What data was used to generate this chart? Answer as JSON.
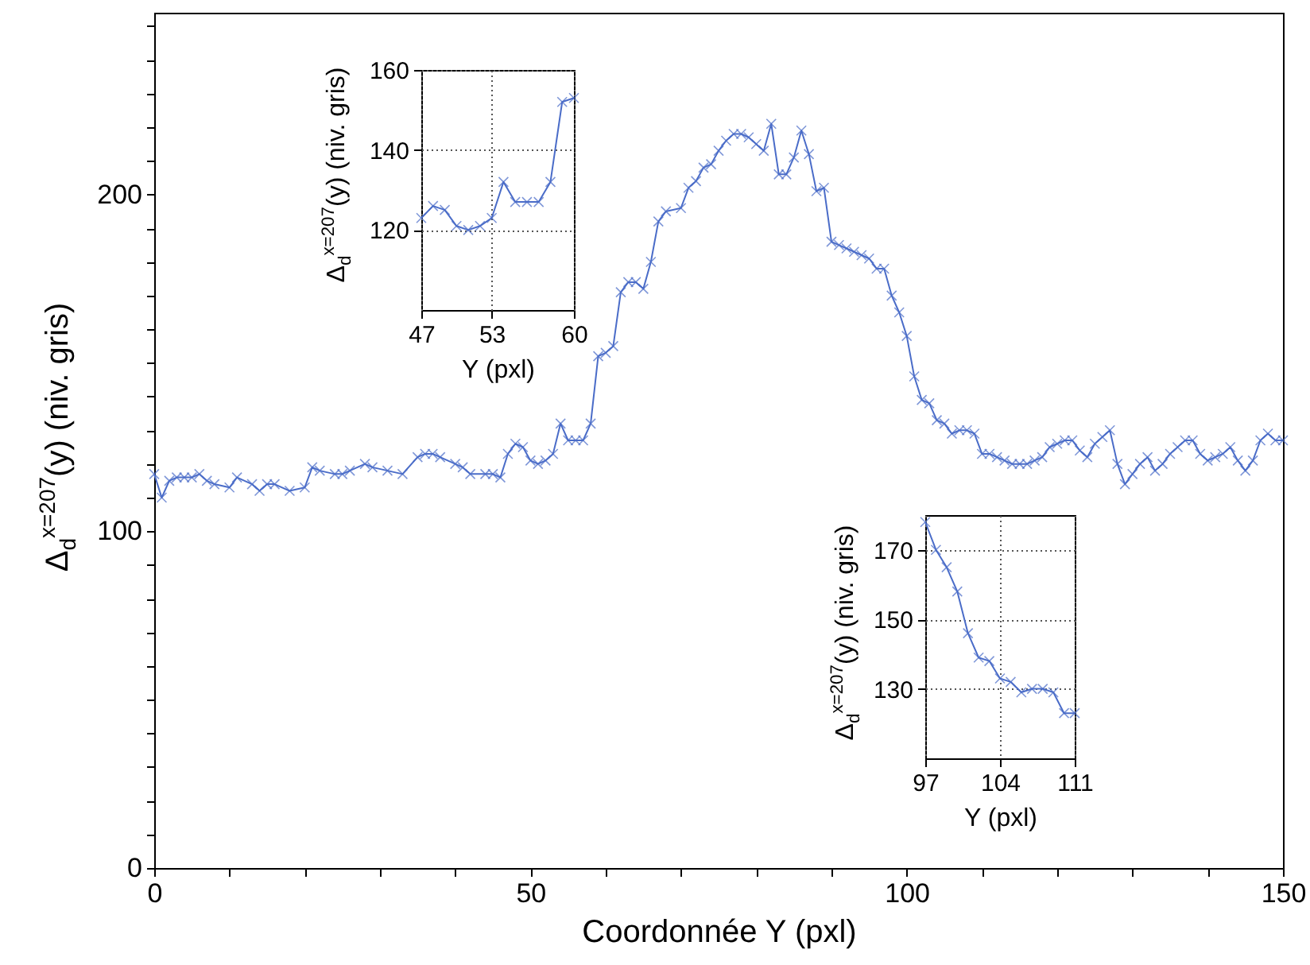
{
  "chart_data": [
    {
      "type": "line",
      "xlabel": "Coordonnée Y (pxl)",
      "ylabel": "Δ$_{d}$$^{x=207}$(y) (niv. gris)",
      "marker": "cross",
      "line_style": "solid",
      "grid": false,
      "xlim": [
        0,
        150
      ],
      "ylim": [
        0,
        254
      ],
      "xticks": [
        0,
        {
          "value": 10,
          "label": null
        },
        {
          "value": 20,
          "label": null
        },
        {
          "value": 30,
          "label": null
        },
        {
          "value": 40,
          "label": null
        },
        50,
        {
          "value": 60,
          "label": null
        },
        {
          "value": 70,
          "label": null
        },
        {
          "value": 80,
          "label": null
        },
        {
          "value": 90,
          "label": null
        },
        100,
        {
          "value": 110,
          "label": null
        },
        {
          "value": 120,
          "label": null
        },
        {
          "value": 130,
          "label": null
        },
        {
          "value": 140,
          "label": null
        },
        150
      ],
      "yticks": [
        0,
        {
          "value": 10,
          "label": null
        },
        {
          "value": 20,
          "label": null
        },
        {
          "value": 30,
          "label": null
        },
        {
          "value": 40,
          "label": null
        },
        {
          "value": 50,
          "label": null
        },
        {
          "value": 60,
          "label": null
        },
        {
          "value": 70,
          "label": null
        },
        {
          "value": 80,
          "label": null
        },
        {
          "value": 90,
          "label": null
        },
        100,
        {
          "value": 110,
          "label": null
        },
        {
          "value": 120,
          "label": null
        },
        {
          "value": 130,
          "label": null
        },
        {
          "value": 140,
          "label": null
        },
        {
          "value": 150,
          "label": null
        },
        {
          "value": 160,
          "label": null
        },
        {
          "value": 170,
          "label": null
        },
        {
          "value": 180,
          "label": null
        },
        {
          "value": 190,
          "label": null
        },
        200,
        {
          "value": 210,
          "label": null
        },
        {
          "value": 220,
          "label": null
        },
        {
          "value": 230,
          "label": null
        },
        {
          "value": 240,
          "label": null
        },
        {
          "value": 250,
          "label": null
        }
      ],
      "series": [
        {
          "color": "#4a6cc8",
          "x": [
            0,
            1,
            2,
            3,
            4,
            5,
            6,
            7,
            8,
            10,
            11,
            13,
            14,
            15,
            16,
            18,
            20,
            21,
            22,
            24,
            25,
            26,
            28,
            29,
            31,
            33,
            35,
            36,
            37,
            38,
            40,
            41,
            42,
            44,
            45,
            46,
            47,
            48,
            49,
            50,
            51,
            52,
            53,
            54,
            55,
            56,
            57,
            58,
            59,
            60,
            61,
            62,
            63,
            64,
            65,
            66,
            67,
            68,
            70,
            71,
            72,
            73,
            74,
            75,
            76,
            77,
            78,
            79,
            80,
            81,
            82,
            83,
            84,
            85,
            86,
            87,
            88,
            89,
            90,
            91,
            92,
            93,
            94,
            95,
            96,
            97,
            98,
            99,
            100,
            101,
            102,
            103,
            104,
            105,
            106,
            107,
            108,
            109,
            110,
            111,
            112,
            113,
            114,
            115,
            116,
            117,
            118,
            119,
            120,
            121,
            122,
            123,
            124,
            125,
            126,
            127,
            128,
            129,
            130,
            131,
            132,
            133,
            134,
            135,
            136,
            137,
            138,
            139,
            140,
            141,
            142,
            143,
            144,
            145,
            146,
            147,
            148,
            149,
            150
          ],
          "values": [
            117,
            110,
            115,
            116,
            116,
            116,
            117,
            115,
            114,
            113,
            116,
            114,
            112,
            114,
            114,
            112,
            113,
            119,
            118,
            117,
            117,
            118,
            120,
            119,
            118,
            117,
            122,
            123,
            123,
            122,
            120,
            119,
            117,
            117,
            117,
            116,
            123,
            126,
            125,
            121,
            120,
            121,
            123,
            132,
            127,
            127,
            127,
            132,
            152,
            153,
            155,
            171,
            174,
            174,
            172,
            180,
            192,
            195,
            196,
            202,
            204,
            208,
            209,
            213,
            216,
            218,
            218,
            217,
            215,
            213,
            221,
            206,
            206,
            211,
            219,
            212,
            201,
            202,
            186,
            185,
            184,
            183,
            182,
            181,
            178,
            178,
            170,
            165,
            158,
            146,
            139,
            138,
            133,
            132,
            129,
            130,
            130,
            129,
            123,
            123,
            122,
            121,
            120,
            120,
            120,
            121,
            122,
            125,
            126,
            127,
            127,
            124,
            122,
            126,
            128,
            130,
            120,
            114,
            117,
            120,
            122,
            118,
            120,
            123,
            125,
            127,
            127,
            123,
            121,
            122,
            123,
            125,
            121,
            118,
            121,
            127,
            129,
            127,
            127
          ]
        }
      ]
    },
    {
      "type": "line",
      "xlabel": "Y (pxl)",
      "ylabel": "Δ$_{d}$$^{x=207}$(y) (niv. gris)",
      "marker": "cross",
      "line_style": "solid",
      "grid": true,
      "xlim": [
        47,
        60
      ],
      "ylim": [
        100,
        160
      ],
      "xticks": [
        47,
        53,
        60
      ],
      "yticks": [
        120,
        140,
        160
      ],
      "series": [
        {
          "color": "#4a6cc8",
          "x": [
            47,
            48,
            49,
            50,
            51,
            52,
            53,
            54,
            55,
            56,
            57,
            58,
            59,
            60
          ],
          "values": [
            123,
            126,
            125,
            121,
            120,
            121,
            123,
            132,
            127,
            127,
            127,
            132,
            152,
            153
          ]
        }
      ]
    },
    {
      "type": "line",
      "xlabel": "Y (pxl)",
      "ylabel": "Δ$_{d}$$^{x=207}$(y) (niv. gris)",
      "marker": "cross",
      "line_style": "solid",
      "grid": true,
      "xlim": [
        97,
        111
      ],
      "ylim": [
        110,
        180
      ],
      "xticks": [
        97,
        104,
        111
      ],
      "yticks": [
        130,
        150,
        170
      ],
      "series": [
        {
          "color": "#4a6cc8",
          "x": [
            97,
            98,
            99,
            100,
            101,
            102,
            103,
            104,
            105,
            106,
            107,
            108,
            109,
            110,
            111
          ],
          "values": [
            178,
            170,
            165,
            158,
            146,
            139,
            138,
            133,
            132,
            129,
            130,
            130,
            129,
            123,
            123
          ]
        }
      ]
    }
  ]
}
